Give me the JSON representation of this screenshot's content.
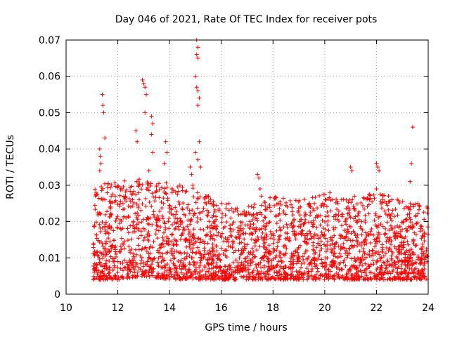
{
  "chart_data": {
    "type": "scatter",
    "title": "Day 046 of 2021, Rate Of TEC Index for receiver pots",
    "xlabel": "GPS time / hours",
    "ylabel": "ROTI / TECUs",
    "xlim": [
      10,
      24
    ],
    "ylim": [
      0,
      0.07
    ],
    "xticks": [
      10,
      12,
      14,
      16,
      18,
      20,
      22,
      24
    ],
    "yticks": [
      0,
      0.01,
      0.02,
      0.03,
      0.04,
      0.05,
      0.06,
      0.07
    ],
    "xtick_labels": [
      "10",
      "12",
      "14",
      "16",
      "18",
      "20",
      "22",
      "24"
    ],
    "ytick_labels": [
      "0",
      "0.01",
      "0.02",
      "0.03",
      "0.04",
      "0.05",
      "0.06",
      "0.07"
    ],
    "grid": true,
    "marker": "plus",
    "color": "#ff0000",
    "data_start_hour": 11.05,
    "data_end_hour": 24.0,
    "typical_range": [
      0.002,
      0.028
    ],
    "series": [
      {
        "name": "pots",
        "points": [
          [
            11.1,
            0.019
          ],
          [
            11.2,
            0.008
          ],
          [
            11.3,
            0.04
          ],
          [
            11.32,
            0.038
          ],
          [
            11.35,
            0.036
          ],
          [
            11.4,
            0.055
          ],
          [
            11.42,
            0.052
          ],
          [
            11.45,
            0.05
          ],
          [
            11.5,
            0.043
          ],
          [
            11.3,
            0.034
          ],
          [
            11.5,
            0.026
          ],
          [
            11.7,
            0.018
          ],
          [
            11.9,
            0.027
          ],
          [
            12.2,
            0.025
          ],
          [
            12.5,
            0.024
          ],
          [
            12.7,
            0.045
          ],
          [
            12.75,
            0.042
          ],
          [
            12.8,
            0.03
          ],
          [
            12.95,
            0.059
          ],
          [
            13.0,
            0.058
          ],
          [
            13.05,
            0.057
          ],
          [
            13.1,
            0.055
          ],
          [
            13.05,
            0.05
          ],
          [
            13.3,
            0.049
          ],
          [
            13.35,
            0.047
          ],
          [
            13.3,
            0.044
          ],
          [
            13.35,
            0.039
          ],
          [
            13.2,
            0.034
          ],
          [
            13.5,
            0.03
          ],
          [
            13.85,
            0.042
          ],
          [
            13.9,
            0.039
          ],
          [
            13.8,
            0.036
          ],
          [
            14.1,
            0.028
          ],
          [
            14.4,
            0.03
          ],
          [
            14.8,
            0.035
          ],
          [
            14.85,
            0.033
          ],
          [
            14.9,
            0.03
          ],
          [
            15.05,
            0.07
          ],
          [
            15.1,
            0.068
          ],
          [
            15.05,
            0.066
          ],
          [
            15.1,
            0.065
          ],
          [
            15.0,
            0.06
          ],
          [
            15.05,
            0.057
          ],
          [
            15.1,
            0.056
          ],
          [
            15.15,
            0.054
          ],
          [
            15.1,
            0.052
          ],
          [
            15.15,
            0.042
          ],
          [
            15.0,
            0.039
          ],
          [
            15.1,
            0.037
          ],
          [
            15.2,
            0.035
          ],
          [
            15.5,
            0.027
          ],
          [
            16.3,
            0.025
          ],
          [
            17.4,
            0.033
          ],
          [
            17.45,
            0.032
          ],
          [
            17.5,
            0.029
          ],
          [
            17.55,
            0.027
          ],
          [
            18.2,
            0.025
          ],
          [
            19.6,
            0.025
          ],
          [
            20.2,
            0.028
          ],
          [
            20.3,
            0.026
          ],
          [
            21.0,
            0.035
          ],
          [
            21.05,
            0.034
          ],
          [
            20.9,
            0.024
          ],
          [
            22.0,
            0.036
          ],
          [
            22.05,
            0.035
          ],
          [
            22.1,
            0.034
          ],
          [
            22.0,
            0.029
          ],
          [
            22.6,
            0.026
          ],
          [
            23.4,
            0.046
          ],
          [
            23.35,
            0.036
          ],
          [
            23.3,
            0.031
          ],
          [
            23.6,
            0.025
          ],
          [
            23.95,
            0.024
          ]
        ]
      }
    ],
    "bulk_bands": [
      [
        11.1,
        0.002,
        0.028
      ],
      [
        12.0,
        0.002,
        0.029
      ],
      [
        13.0,
        0.003,
        0.03
      ],
      [
        14.0,
        0.002,
        0.029
      ],
      [
        15.0,
        0.002,
        0.027
      ],
      [
        16.0,
        0.002,
        0.023
      ],
      [
        17.0,
        0.002,
        0.022
      ],
      [
        18.0,
        0.002,
        0.025
      ],
      [
        19.0,
        0.002,
        0.024
      ],
      [
        20.0,
        0.002,
        0.026
      ],
      [
        21.0,
        0.002,
        0.025
      ],
      [
        22.0,
        0.002,
        0.026
      ],
      [
        23.0,
        0.002,
        0.024
      ],
      [
        24.0,
        0.002,
        0.022
      ]
    ]
  }
}
